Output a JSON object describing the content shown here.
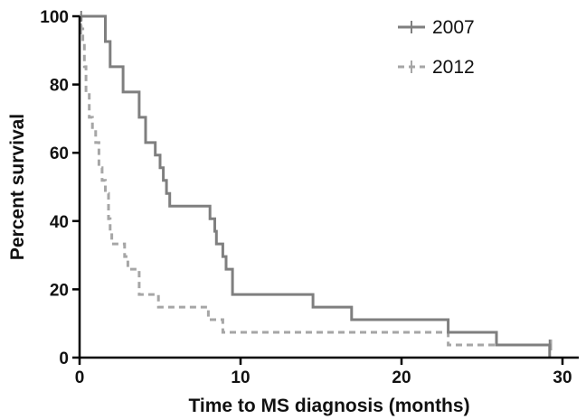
{
  "chart_data": {
    "type": "line",
    "step": true,
    "xlabel": "Time to MS diagnosis (months)",
    "ylabel": "Percent survival",
    "xlim": [
      0,
      30
    ],
    "ylim": [
      0,
      100
    ],
    "xticks": [
      0,
      10,
      20,
      30
    ],
    "yticks": [
      0,
      20,
      40,
      60,
      80,
      100
    ],
    "grid": false,
    "legend_position": "top-right",
    "series": [
      {
        "name": "2007",
        "color": "#7f7f7f",
        "dash": "solid",
        "points": [
          [
            0,
            100
          ],
          [
            1.6,
            100
          ],
          [
            1.6,
            92.6
          ],
          [
            1.9,
            92.6
          ],
          [
            1.9,
            85.2
          ],
          [
            2.7,
            85.2
          ],
          [
            2.7,
            77.8
          ],
          [
            3.7,
            77.8
          ],
          [
            3.7,
            70.4
          ],
          [
            4.1,
            70.4
          ],
          [
            4.1,
            63
          ],
          [
            4.7,
            63
          ],
          [
            4.7,
            59.3
          ],
          [
            5.0,
            59.3
          ],
          [
            5.0,
            55.6
          ],
          [
            5.2,
            55.6
          ],
          [
            5.2,
            51.9
          ],
          [
            5.4,
            51.9
          ],
          [
            5.4,
            48.1
          ],
          [
            5.6,
            48.1
          ],
          [
            5.6,
            44.4
          ],
          [
            8.1,
            44.4
          ],
          [
            8.1,
            40.7
          ],
          [
            8.4,
            40.7
          ],
          [
            8.4,
            37
          ],
          [
            8.5,
            37
          ],
          [
            8.5,
            33.3
          ],
          [
            8.9,
            33.3
          ],
          [
            8.9,
            29.6
          ],
          [
            9.1,
            29.6
          ],
          [
            9.1,
            25.9
          ],
          [
            9.5,
            25.9
          ],
          [
            9.5,
            18.5
          ],
          [
            14.5,
            18.5
          ],
          [
            14.5,
            14.8
          ],
          [
            16.9,
            14.8
          ],
          [
            16.9,
            11.1
          ],
          [
            22.9,
            11.1
          ],
          [
            22.9,
            7.4
          ],
          [
            25.9,
            7.4
          ],
          [
            25.9,
            3.7
          ],
          [
            29.2,
            3.7
          ],
          [
            29.2,
            0
          ]
        ],
        "censored": [
          [
            0.1,
            100
          ],
          [
            29.2,
            3.7
          ]
        ]
      },
      {
        "name": "2012",
        "color": "#a6a6a6",
        "dash": "dashed",
        "points": [
          [
            0,
            100
          ],
          [
            0.1,
            100
          ],
          [
            0.1,
            96.3
          ],
          [
            0.2,
            96.3
          ],
          [
            0.2,
            92.6
          ],
          [
            0.3,
            92.6
          ],
          [
            0.3,
            85.2
          ],
          [
            0.4,
            85.2
          ],
          [
            0.4,
            77.8
          ],
          [
            0.6,
            77.8
          ],
          [
            0.6,
            70.4
          ],
          [
            0.8,
            70.4
          ],
          [
            0.8,
            66.7
          ],
          [
            1.0,
            66.7
          ],
          [
            1.0,
            63
          ],
          [
            1.2,
            63
          ],
          [
            1.2,
            55.6
          ],
          [
            1.4,
            55.6
          ],
          [
            1.4,
            51.9
          ],
          [
            1.6,
            51.9
          ],
          [
            1.6,
            48.1
          ],
          [
            1.8,
            48.1
          ],
          [
            1.8,
            40.7
          ],
          [
            1.9,
            40.7
          ],
          [
            1.9,
            37
          ],
          [
            2.0,
            37
          ],
          [
            2.0,
            33.3
          ],
          [
            2.8,
            33.3
          ],
          [
            2.8,
            29.6
          ],
          [
            3.0,
            29.6
          ],
          [
            3.0,
            25.9
          ],
          [
            3.7,
            25.9
          ],
          [
            3.7,
            18.5
          ],
          [
            4.9,
            18.5
          ],
          [
            4.9,
            14.8
          ],
          [
            8.0,
            14.8
          ],
          [
            8.0,
            11.1
          ],
          [
            8.9,
            11.1
          ],
          [
            8.9,
            7.4
          ],
          [
            22.9,
            7.4
          ],
          [
            22.9,
            3.7
          ],
          [
            29.3,
            3.7
          ]
        ],
        "censored": [
          [
            0.1,
            96.3
          ],
          [
            29.3,
            3.7
          ]
        ]
      }
    ]
  }
}
